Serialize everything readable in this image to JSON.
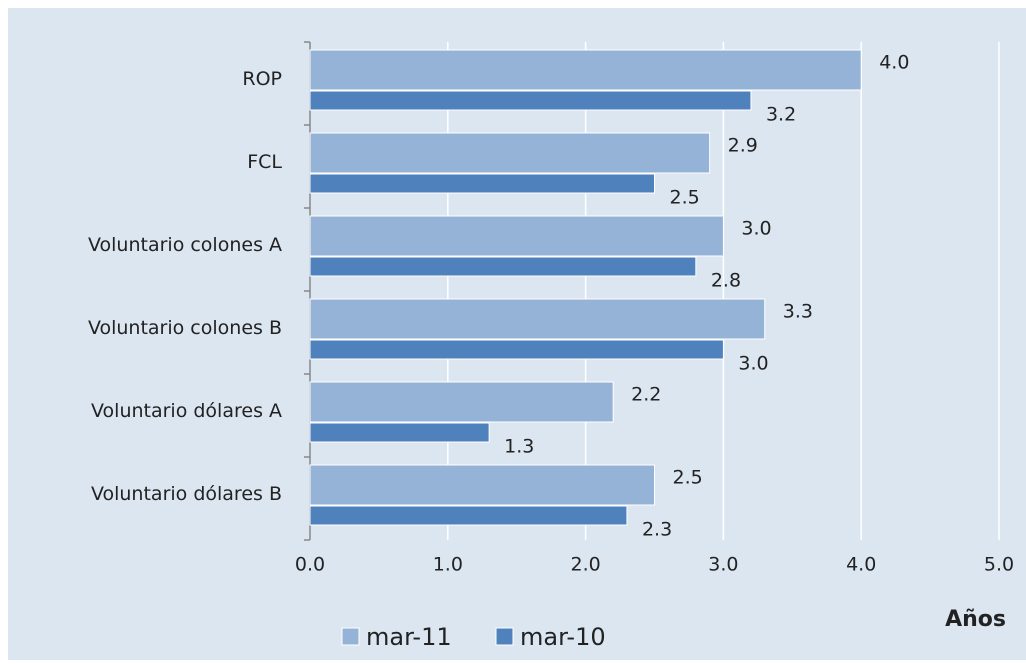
{
  "chart_data": {
    "type": "bar",
    "orientation": "horizontal",
    "categories": [
      "ROP",
      "FCL",
      "Voluntario colones A",
      "Voluntario colones B",
      "Voluntario dólares A",
      "Voluntario dólares B"
    ],
    "series": [
      {
        "name": "mar-11",
        "color": "#95b3d7",
        "values": [
          4.0,
          2.9,
          3.0,
          3.3,
          2.2,
          2.5
        ],
        "value_labels": [
          "4.0",
          "2.9",
          "3.0",
          "3.3",
          "2.2",
          "2.5"
        ]
      },
      {
        "name": "mar-10",
        "color": "#4f81bd",
        "values": [
          3.2,
          2.5,
          2.8,
          3.0,
          1.3,
          2.3
        ],
        "value_labels": [
          "3.2",
          "2.5",
          "2.8",
          "3.0",
          "1.3",
          "2.3"
        ]
      }
    ],
    "x_label": "Años",
    "xlim": [
      0,
      5
    ],
    "xticks": [
      {
        "value": 0,
        "label": "0.0"
      },
      {
        "value": 1,
        "label": "1.0"
      },
      {
        "value": 2,
        "label": "2.0"
      },
      {
        "value": 3,
        "label": "3.0"
      },
      {
        "value": 4,
        "label": "4.0"
      },
      {
        "value": 5,
        "label": "5.0"
      }
    ],
    "grid": true,
    "legend": "bottom"
  }
}
